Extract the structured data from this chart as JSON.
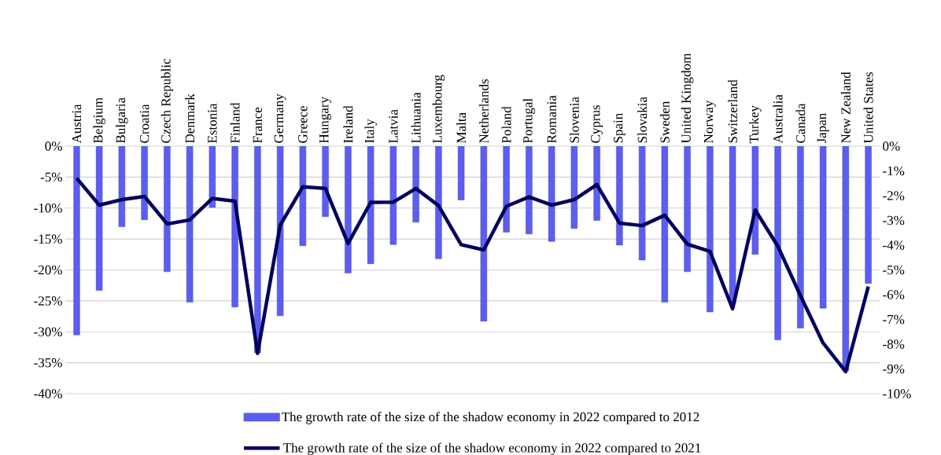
{
  "chart_data": {
    "type": "bar",
    "categories": [
      "Austria",
      "Belgium",
      "Bulgaria",
      "Croatia",
      "Czech Republic",
      "Denmark",
      "Estonia",
      "Finland",
      "France",
      "Germany",
      "Greece",
      "Hungary",
      "Ireland",
      "Italy",
      "Latvia",
      "Lithuania",
      "Luxembourg",
      "Malta",
      "Netherlands",
      "Poland",
      "Portugal",
      "Romania",
      "Slovenia",
      "Cyprus",
      "Spain",
      "Slovakia",
      "Sweden",
      "United Kingdom",
      "Norway",
      "Switzerland",
      "Turkey",
      "Australia",
      "Canada",
      "Japan",
      "New Zealand",
      "United States"
    ],
    "series": [
      {
        "name": "The growth rate of the size of the shadow economy in 2022 compared to 2012",
        "color": "#5b5ef0",
        "values": [
          -30.5,
          -23.3,
          -13,
          -11.9,
          -20.3,
          -25.2,
          -9.9,
          -26,
          -33.4,
          -27.4,
          -16.1,
          -11.4,
          -20.5,
          -19,
          -15.9,
          -12.3,
          -18.2,
          -8.7,
          -28.3,
          -13.9,
          -14.2,
          -15.4,
          -13.3,
          -12,
          -16,
          -18.4,
          -25.2,
          -20.3,
          -26.8,
          -25.5,
          -17.5,
          -31.3,
          -29.4,
          -26.2,
          -36.3,
          -22.2
        ]
      },
      {
        "name": "The growth rate of the size of the shadow economy in 2022 compared to 2021",
        "type": "line",
        "axis": "y2",
        "color": "#00005e",
        "values": [
          -1.29,
          -2.38,
          -2.16,
          -2.03,
          -3.14,
          -2.98,
          -2.11,
          -2.22,
          -8.37,
          -3.19,
          -1.64,
          -1.71,
          -3.93,
          -2.27,
          -2.26,
          -1.71,
          -2.4,
          -3.98,
          -4.19,
          -2.43,
          -2.05,
          -2.38,
          -2.16,
          -1.55,
          -3.11,
          -3.21,
          -2.79,
          -3.96,
          -4.25,
          -6.57,
          -2.58,
          -4.04,
          -6.04,
          -7.95,
          -9.11,
          -5.67
        ]
      }
    ],
    "ylim": [
      -40,
      0
    ],
    "yticks": [
      {
        "value": 0,
        "label": "0%"
      },
      {
        "value": -5,
        "label": "-5%"
      },
      {
        "value": -10,
        "label": "-10%"
      },
      {
        "value": -15,
        "label": "-15%"
      },
      {
        "value": -20,
        "label": "-20%"
      },
      {
        "value": -25,
        "label": "-25%"
      },
      {
        "value": -30,
        "label": "-30%"
      },
      {
        "value": -35,
        "label": "-35%"
      },
      {
        "value": -40,
        "label": "-40%"
      }
    ],
    "y2lim": [
      -10,
      0
    ],
    "y2ticks": [
      {
        "value": 0,
        "label": "0%"
      },
      {
        "value": -1,
        "label": "-1%"
      },
      {
        "value": -2,
        "label": "-2%"
      },
      {
        "value": -3,
        "label": "-3%"
      },
      {
        "value": -4,
        "label": "-4%"
      },
      {
        "value": -5,
        "label": "-5%"
      },
      {
        "value": -6,
        "label": "-6%"
      },
      {
        "value": -7,
        "label": "-7%"
      },
      {
        "value": -8,
        "label": "-8%"
      },
      {
        "value": -9,
        "label": "-9%"
      },
      {
        "value": -10,
        "label": "-10%"
      }
    ],
    "grid": "y",
    "legend": "bottom"
  }
}
